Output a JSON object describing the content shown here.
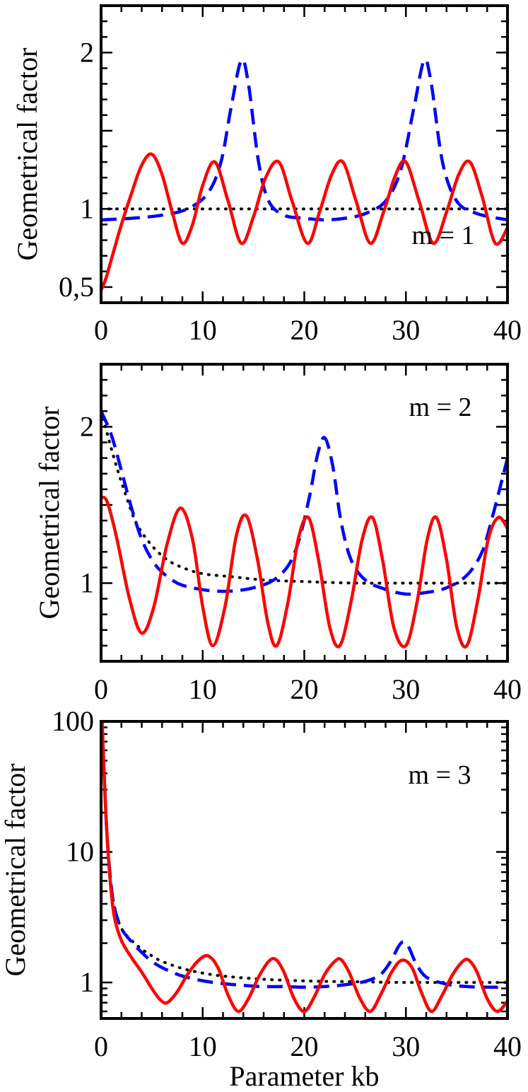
{
  "chart_data": [
    {
      "type": "line",
      "annotation": "m = 1",
      "ylabel": "Geometrical factor",
      "xlabel": "",
      "xlim": [
        0,
        40
      ],
      "ylim": [
        0.4,
        2.3
      ],
      "yscale": "linear",
      "x_ticks": [
        "0",
        "10",
        "20",
        "30",
        "40"
      ],
      "y_ticks": [
        {
          "value": 0.5,
          "label": "0,5"
        },
        {
          "value": 1,
          "label": "1"
        },
        {
          "value": 2,
          "label": "2"
        }
      ],
      "grid": false,
      "legend": "none",
      "series": [
        {
          "style": "solid",
          "color": "#ff0000",
          "points": [
            [
              0,
              0.48
            ],
            [
              0.5,
              0.56
            ],
            [
              1.2,
              0.72
            ],
            [
              2,
              0.9
            ],
            [
              3,
              1.1
            ],
            [
              4,
              1.28
            ],
            [
              5,
              1.35
            ],
            [
              6,
              1.22
            ],
            [
              7,
              0.98
            ],
            [
              8,
              0.78
            ],
            [
              9,
              0.9
            ],
            [
              10,
              1.15
            ],
            [
              11.2,
              1.3
            ],
            [
              12.5,
              1.05
            ],
            [
              13.8,
              0.78
            ],
            [
              15,
              0.95
            ],
            [
              16.2,
              1.2
            ],
            [
              17.5,
              1.3
            ],
            [
              18.8,
              1.05
            ],
            [
              20.3,
              0.78
            ],
            [
              21.5,
              0.98
            ],
            [
              22.7,
              1.22
            ],
            [
              23.8,
              1.3
            ],
            [
              25.1,
              1.05
            ],
            [
              26.5,
              0.78
            ],
            [
              27.8,
              0.98
            ],
            [
              29,
              1.22
            ],
            [
              30,
              1.3
            ],
            [
              31.3,
              1.05
            ],
            [
              32.7,
              0.78
            ],
            [
              34,
              0.98
            ],
            [
              35.2,
              1.22
            ],
            [
              36.3,
              1.3
            ],
            [
              37.5,
              1.08
            ],
            [
              38.8,
              0.78
            ],
            [
              40,
              0.88
            ]
          ]
        },
        {
          "style": "dashed",
          "color": "#0000ff",
          "points": [
            [
              0,
              0.93
            ],
            [
              3,
              0.94
            ],
            [
              6,
              0.96
            ],
            [
              8.5,
              1.0
            ],
            [
              10.5,
              1.1
            ],
            [
              11.8,
              1.3
            ],
            [
              12.8,
              1.65
            ],
            [
              13.8,
              1.95
            ],
            [
              14.5,
              1.8
            ],
            [
              15.5,
              1.3
            ],
            [
              16.5,
              1.05
            ],
            [
              18,
              0.96
            ],
            [
              20,
              0.94
            ],
            [
              22,
              0.93
            ],
            [
              24,
              0.94
            ],
            [
              26,
              0.97
            ],
            [
              28,
              1.05
            ],
            [
              29.5,
              1.25
            ],
            [
              30.8,
              1.65
            ],
            [
              31.8,
              1.95
            ],
            [
              32.5,
              1.8
            ],
            [
              33.6,
              1.3
            ],
            [
              35,
              1.05
            ],
            [
              37,
              0.97
            ],
            [
              40,
              0.93
            ]
          ]
        },
        {
          "style": "dotted",
          "color": "#000000",
          "points": [
            [
              0,
              1.0
            ],
            [
              40,
              1.0
            ]
          ]
        }
      ]
    },
    {
      "type": "line",
      "annotation": "m = 2",
      "ylabel": "Geometrical factor",
      "xlabel": "",
      "xlim": [
        0,
        40
      ],
      "ylim": [
        0.5,
        2.4
      ],
      "yscale": "linear",
      "x_ticks": [
        "0",
        "10",
        "20",
        "30",
        "40"
      ],
      "y_ticks": [
        {
          "value": 1,
          "label": "1"
        },
        {
          "value": 2,
          "label": "2"
        }
      ],
      "grid": false,
      "legend": "none",
      "series": [
        {
          "style": "solid",
          "color": "#ff0000",
          "points": [
            [
              0,
              1.55
            ],
            [
              0.6,
              1.52
            ],
            [
              1.5,
              1.3
            ],
            [
              2.8,
              0.9
            ],
            [
              4,
              0.68
            ],
            [
              5.2,
              0.85
            ],
            [
              6.5,
              1.25
            ],
            [
              7.8,
              1.48
            ],
            [
              9,
              1.28
            ],
            [
              10,
              0.85
            ],
            [
              11,
              0.6
            ],
            [
              12.2,
              0.85
            ],
            [
              13.3,
              1.3
            ],
            [
              14.3,
              1.43
            ],
            [
              15.4,
              1.15
            ],
            [
              16.4,
              0.75
            ],
            [
              17.3,
              0.6
            ],
            [
              18.4,
              0.88
            ],
            [
              19.4,
              1.28
            ],
            [
              20.4,
              1.42
            ],
            [
              21.4,
              1.15
            ],
            [
              22.5,
              0.72
            ],
            [
              23.5,
              0.6
            ],
            [
              24.6,
              0.88
            ],
            [
              25.7,
              1.28
            ],
            [
              26.7,
              1.42
            ],
            [
              27.7,
              1.15
            ],
            [
              28.8,
              0.72
            ],
            [
              30,
              0.6
            ],
            [
              31.1,
              0.88
            ],
            [
              32.1,
              1.28
            ],
            [
              33,
              1.42
            ],
            [
              34,
              1.15
            ],
            [
              35,
              0.72
            ],
            [
              36,
              0.6
            ],
            [
              37.1,
              0.9
            ],
            [
              38.1,
              1.28
            ],
            [
              39.1,
              1.42
            ],
            [
              40,
              1.35
            ]
          ]
        },
        {
          "style": "dashed",
          "color": "#0000ff",
          "points": [
            [
              0,
              2.1
            ],
            [
              1,
              1.95
            ],
            [
              2,
              1.72
            ],
            [
              3,
              1.48
            ],
            [
              4,
              1.28
            ],
            [
              5,
              1.15
            ],
            [
              6,
              1.07
            ],
            [
              7.5,
              1.0
            ],
            [
              9,
              0.97
            ],
            [
              11,
              0.95
            ],
            [
              13,
              0.95
            ],
            [
              15,
              0.97
            ],
            [
              17,
              1.02
            ],
            [
              18.5,
              1.12
            ],
            [
              19.5,
              1.28
            ],
            [
              20.5,
              1.55
            ],
            [
              21.3,
              1.82
            ],
            [
              22,
              1.93
            ],
            [
              22.8,
              1.75
            ],
            [
              23.6,
              1.4
            ],
            [
              24.6,
              1.15
            ],
            [
              26,
              1.02
            ],
            [
              28,
              0.96
            ],
            [
              30,
              0.93
            ],
            [
              32,
              0.94
            ],
            [
              34,
              0.97
            ],
            [
              36,
              1.05
            ],
            [
              37.5,
              1.2
            ],
            [
              38.5,
              1.42
            ],
            [
              39.3,
              1.62
            ],
            [
              40,
              1.8
            ]
          ]
        },
        {
          "style": "dotted",
          "color": "#000000",
          "points": [
            [
              0,
              2.1
            ],
            [
              0.5,
              1.98
            ],
            [
              1.5,
              1.75
            ],
            [
              2.5,
              1.55
            ],
            [
              3.5,
              1.38
            ],
            [
              5,
              1.24
            ],
            [
              6.5,
              1.15
            ],
            [
              8,
              1.1
            ],
            [
              10,
              1.06
            ],
            [
              13,
              1.04
            ],
            [
              16,
              1.02
            ],
            [
              20,
              1.01
            ],
            [
              25,
              1.0
            ],
            [
              30,
              1.0
            ],
            [
              40,
              1.0
            ]
          ]
        }
      ]
    },
    {
      "type": "line",
      "annotation": "m = 3",
      "ylabel": "Geometrical factor",
      "xlabel": "Parameter kb",
      "xlim": [
        0,
        40
      ],
      "ylim": [
        0.53,
        100
      ],
      "yscale": "log",
      "x_ticks": [
        "0",
        "10",
        "20",
        "30",
        "40"
      ],
      "y_ticks": [
        {
          "value": 1,
          "label": "1"
        },
        {
          "value": 10,
          "label": "10"
        },
        {
          "value": 100,
          "label": "100"
        }
      ],
      "grid": false,
      "legend": "none",
      "series": [
        {
          "style": "solid",
          "color": "#ff0000",
          "points": [
            [
              0.1,
              100
            ],
            [
              0.3,
              40
            ],
            [
              0.55,
              15
            ],
            [
              0.9,
              6
            ],
            [
              1.3,
              3.2
            ],
            [
              2,
              2.1
            ],
            [
              3,
              1.55
            ],
            [
              4,
              1.2
            ],
            [
              5,
              0.9
            ],
            [
              5.8,
              0.74
            ],
            [
              6.5,
              0.7
            ],
            [
              7.5,
              0.85
            ],
            [
              8.5,
              1.15
            ],
            [
              9.5,
              1.45
            ],
            [
              10.5,
              1.6
            ],
            [
              11.5,
              1.3
            ],
            [
              12.5,
              0.8
            ],
            [
              13.5,
              0.6
            ],
            [
              14.5,
              0.75
            ],
            [
              15.5,
              1.1
            ],
            [
              16.5,
              1.45
            ],
            [
              17.2,
              1.5
            ],
            [
              18,
              1.2
            ],
            [
              19,
              0.75
            ],
            [
              20,
              0.6
            ],
            [
              21,
              0.78
            ],
            [
              22,
              1.15
            ],
            [
              23,
              1.45
            ],
            [
              23.6,
              1.5
            ],
            [
              24.4,
              1.2
            ],
            [
              25.5,
              0.75
            ],
            [
              26.5,
              0.6
            ],
            [
              27.5,
              0.8
            ],
            [
              28.6,
              1.2
            ],
            [
              29.6,
              1.48
            ],
            [
              30.6,
              1.3
            ],
            [
              31.5,
              0.85
            ],
            [
              32.5,
              0.6
            ],
            [
              33.5,
              0.78
            ],
            [
              34.6,
              1.15
            ],
            [
              35.6,
              1.45
            ],
            [
              36.2,
              1.48
            ],
            [
              37,
              1.2
            ],
            [
              38,
              0.75
            ],
            [
              39,
              0.6
            ],
            [
              40,
              0.72
            ]
          ]
        },
        {
          "style": "dashed",
          "color": "#0000ff",
          "points": [
            [
              0.1,
              100
            ],
            [
              0.3,
              40
            ],
            [
              0.55,
              15
            ],
            [
              0.9,
              6.5
            ],
            [
              1.3,
              3.8
            ],
            [
              2,
              2.6
            ],
            [
              3,
              2.05
            ],
            [
              4,
              1.7
            ],
            [
              5,
              1.45
            ],
            [
              6,
              1.3
            ],
            [
              7,
              1.2
            ],
            [
              8,
              1.12
            ],
            [
              10,
              1.03
            ],
            [
              12,
              0.98
            ],
            [
              14,
              0.95
            ],
            [
              16,
              0.93
            ],
            [
              18,
              0.93
            ],
            [
              20,
              0.92
            ],
            [
              22,
              0.93
            ],
            [
              24,
              0.96
            ],
            [
              26,
              1.02
            ],
            [
              27.5,
              1.15
            ],
            [
              28.5,
              1.45
            ],
            [
              29.3,
              1.9
            ],
            [
              29.8,
              2.05
            ],
            [
              30.3,
              1.85
            ],
            [
              31,
              1.4
            ],
            [
              32,
              1.1
            ],
            [
              34,
              0.97
            ],
            [
              36,
              0.93
            ],
            [
              38,
              0.92
            ],
            [
              40,
              0.92
            ]
          ]
        },
        {
          "style": "dotted",
          "color": "#000000",
          "points": [
            [
              0.1,
              100
            ],
            [
              0.3,
              40
            ],
            [
              0.55,
              15
            ],
            [
              0.9,
              6.5
            ],
            [
              1.3,
              3.8
            ],
            [
              2,
              2.6
            ],
            [
              3,
              2.1
            ],
            [
              4,
              1.8
            ],
            [
              5,
              1.6
            ],
            [
              6,
              1.45
            ],
            [
              8,
              1.28
            ],
            [
              10,
              1.18
            ],
            [
              12,
              1.12
            ],
            [
              15,
              1.07
            ],
            [
              18,
              1.04
            ],
            [
              22,
              1.02
            ],
            [
              26,
              1.01
            ],
            [
              30,
              1.0
            ],
            [
              40,
              1.0
            ]
          ]
        }
      ]
    }
  ]
}
